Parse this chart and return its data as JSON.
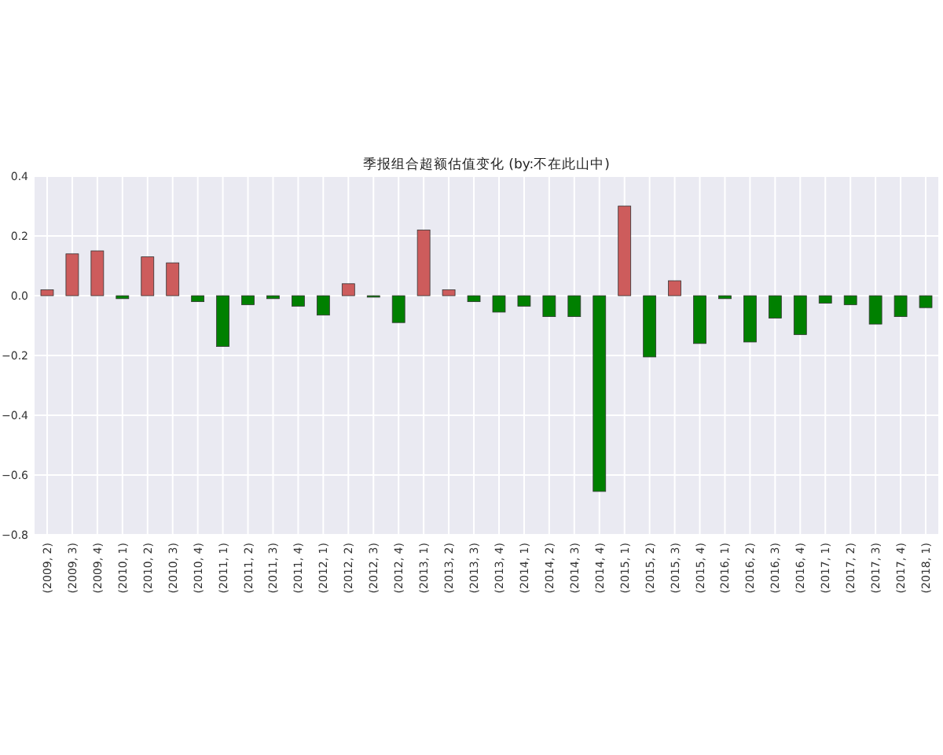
{
  "chart_data": {
    "type": "bar",
    "title": "季报组合超额估值变化  (by:不在此山中)",
    "categories": [
      "(2009, 2)",
      "(2009, 3)",
      "(2009, 4)",
      "(2010, 1)",
      "(2010, 2)",
      "(2010, 3)",
      "(2010, 4)",
      "(2011, 1)",
      "(2011, 2)",
      "(2011, 3)",
      "(2011, 4)",
      "(2012, 1)",
      "(2012, 2)",
      "(2012, 3)",
      "(2012, 4)",
      "(2013, 1)",
      "(2013, 2)",
      "(2013, 3)",
      "(2013, 4)",
      "(2014, 1)",
      "(2014, 2)",
      "(2014, 3)",
      "(2014, 4)",
      "(2015, 1)",
      "(2015, 2)",
      "(2015, 3)",
      "(2015, 4)",
      "(2016, 1)",
      "(2016, 2)",
      "(2016, 3)",
      "(2016, 4)",
      "(2017, 1)",
      "(2017, 2)",
      "(2017, 3)",
      "(2017, 4)",
      "(2018, 1)"
    ],
    "values": [
      0.02,
      0.14,
      0.15,
      -0.01,
      0.13,
      0.11,
      -0.02,
      -0.17,
      -0.03,
      -0.01,
      -0.035,
      -0.065,
      0.04,
      -0.005,
      -0.09,
      0.22,
      0.02,
      -0.02,
      -0.055,
      -0.035,
      -0.07,
      -0.07,
      -0.655,
      0.3,
      -0.205,
      0.05,
      -0.16,
      -0.01,
      -0.155,
      -0.075,
      -0.13,
      -0.025,
      -0.03,
      -0.095,
      -0.07,
      -0.04
    ],
    "colors": [
      "#cd5c5c",
      "#cd5c5c",
      "#cd5c5c",
      "#008000",
      "#cd5c5c",
      "#cd5c5c",
      "#008000",
      "#008000",
      "#008000",
      "#008000",
      "#008000",
      "#008000",
      "#cd5c5c",
      "#008000",
      "#008000",
      "#cd5c5c",
      "#cd5c5c",
      "#008000",
      "#008000",
      "#008000",
      "#008000",
      "#008000",
      "#008000",
      "#cd5c5c",
      "#008000",
      "#cd5c5c",
      "#008000",
      "#008000",
      "#008000",
      "#008000",
      "#008000",
      "#008000",
      "#008000",
      "#008000",
      "#008000",
      "#008000"
    ],
    "ylim": [
      -0.8,
      0.4
    ],
    "yticks": [
      {
        "value": -0.8,
        "label": "−0.8"
      },
      {
        "value": -0.6,
        "label": "−0.6"
      },
      {
        "value": -0.4,
        "label": "−0.4"
      },
      {
        "value": -0.2,
        "label": "−0.2"
      },
      {
        "value": 0,
        "label": "0.0"
      },
      {
        "value": 0.2,
        "label": "0.2"
      },
      {
        "value": 0.4,
        "label": "0.4"
      }
    ],
    "grid": true
  }
}
